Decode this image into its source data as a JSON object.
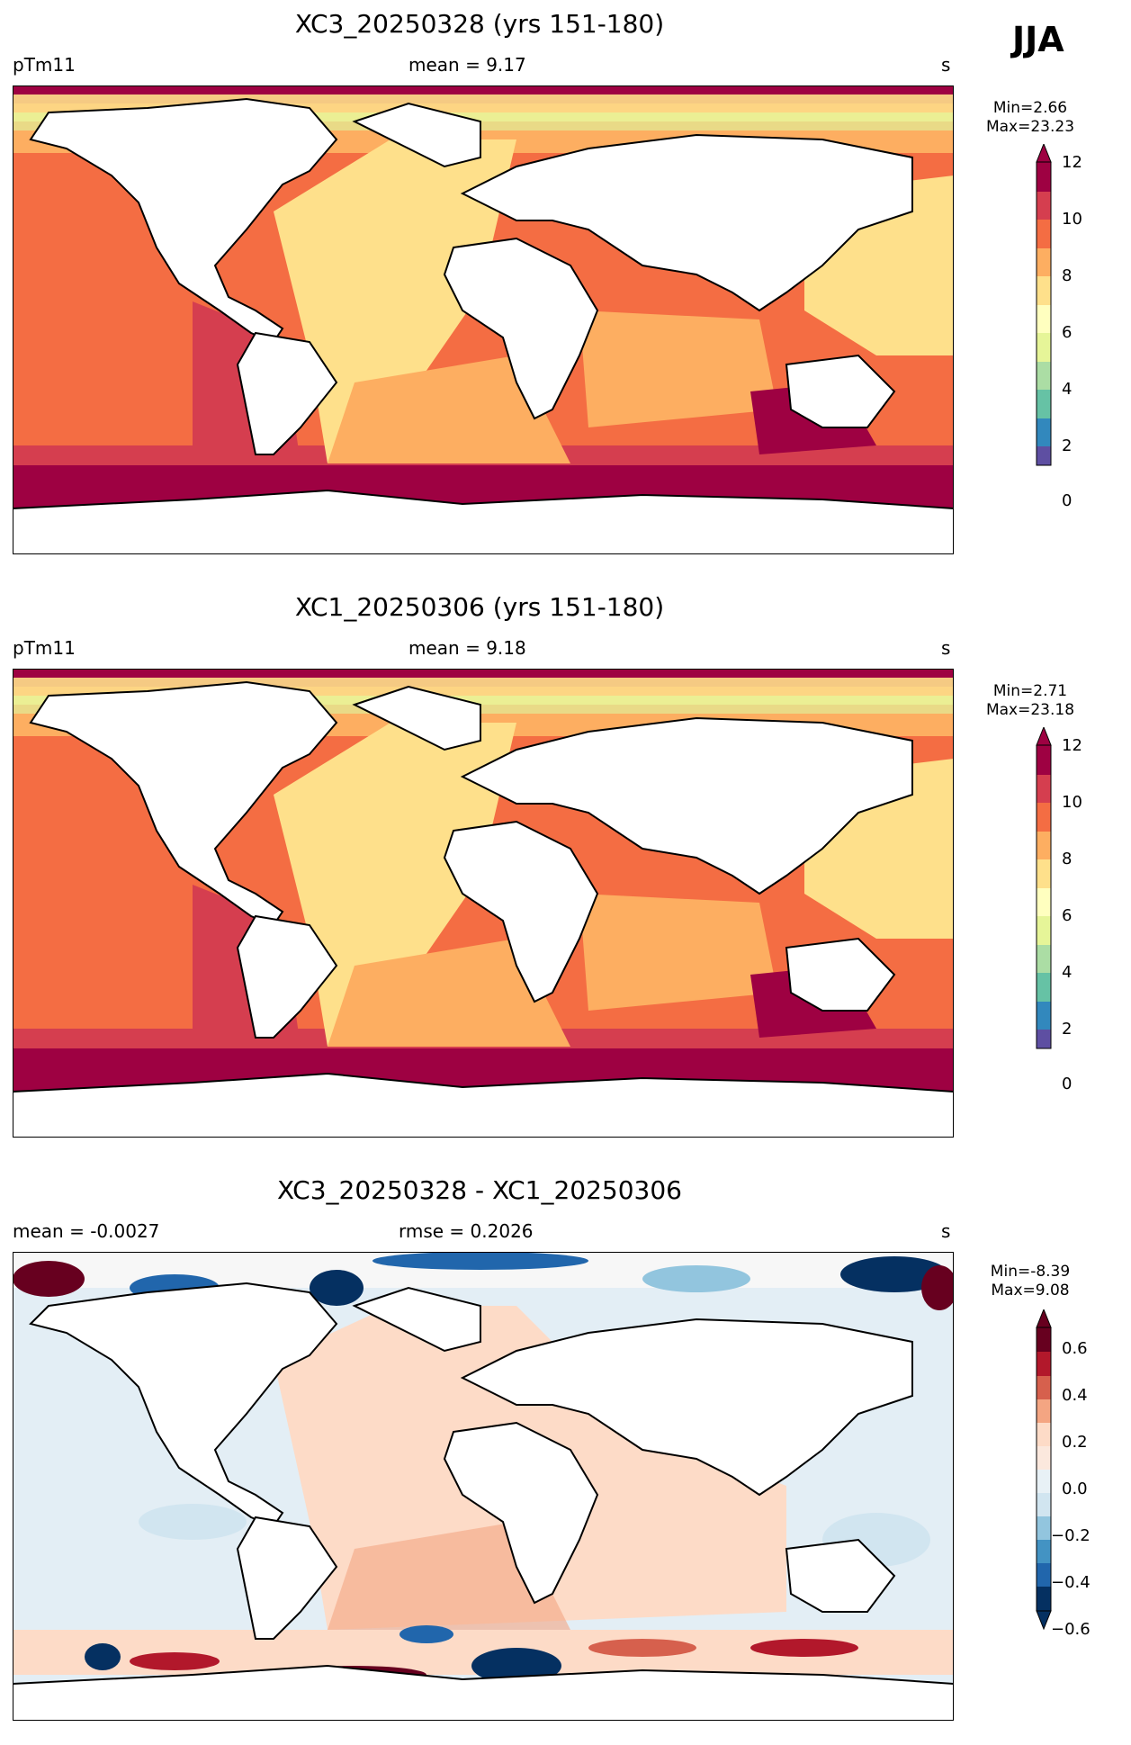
{
  "season": "JJA",
  "panels": [
    {
      "title": "XC3_20250328 (yrs 151-180)",
      "left_label": "pTm11",
      "center_label": "mean = 9.17",
      "units": "s",
      "min_label": "Min=2.66",
      "max_label": "Max=23.23",
      "cbar_ticks": [
        "0",
        "2",
        "4",
        "6",
        "8",
        "10",
        "12"
      ]
    },
    {
      "title": "XC1_20250306 (yrs 151-180)",
      "left_label": "pTm11",
      "center_label": "mean = 9.18",
      "units": "s",
      "min_label": "Min=2.71",
      "max_label": "Max=23.18",
      "cbar_ticks": [
        "0",
        "2",
        "4",
        "6",
        "8",
        "10",
        "12"
      ]
    },
    {
      "title": "XC3_20250328 - XC1_20250306",
      "left_label": "mean = -0.0027",
      "center_label": "rmse = 0.2026",
      "units": "s",
      "min_label": "Min=-8.39",
      "max_label": "Max=9.08",
      "cbar_ticks": [
        "0.6",
        "0.4",
        "0.2",
        "0.0",
        "−0.2",
        "−0.4",
        "−0.6"
      ]
    }
  ],
  "colors": {
    "spectral": [
      "#5e4fa2",
      "#3288bd",
      "#66c2a5",
      "#abdda4",
      "#e6f598",
      "#ffffbf",
      "#fee08b",
      "#fdae61",
      "#f46d43",
      "#d53e4f",
      "#9e0142"
    ],
    "diverging": [
      "#053061",
      "#2166ac",
      "#4393c3",
      "#92c5de",
      "#d1e5f0",
      "#f7f7f7",
      "#fddbc7",
      "#f4a582",
      "#d6604d",
      "#b2182b",
      "#67001f"
    ],
    "land": "#ffffff",
    "coast": "#000000"
  }
}
